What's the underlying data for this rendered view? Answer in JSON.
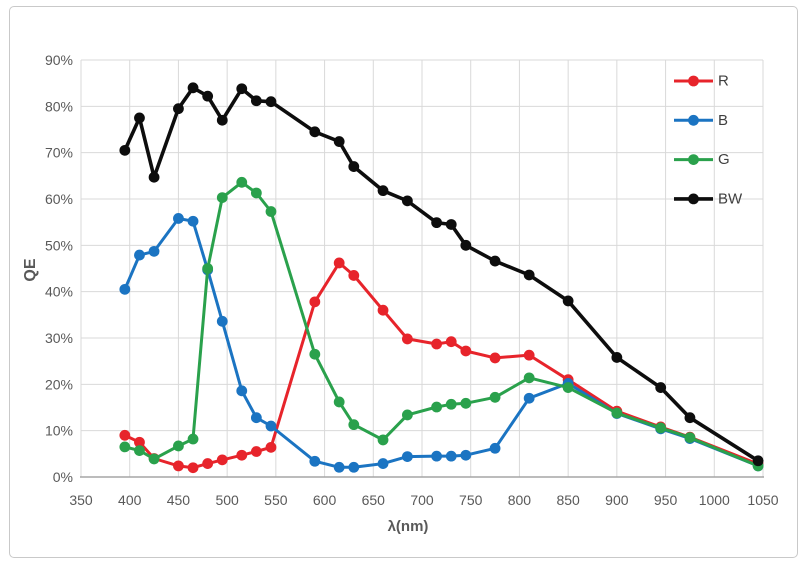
{
  "figure": {
    "border_color": "#c9c9c9",
    "background_color": "#ffffff",
    "gridline_color": "#d9d9d9",
    "axis_line_color": "#a6a6a6",
    "tick_label_color": "#595959",
    "legend_label_color": "#3f3f3f"
  },
  "chart_data": {
    "type": "line",
    "title": "",
    "xlabel": "λ(nm)",
    "ylabel": "QE",
    "xlim": [
      350,
      1050
    ],
    "ylim_percent": [
      0,
      90
    ],
    "x_ticks": [
      350,
      400,
      450,
      500,
      550,
      600,
      650,
      700,
      750,
      800,
      850,
      900,
      950,
      1000,
      1050
    ],
    "y_ticks_percent": [
      0,
      10,
      20,
      30,
      40,
      50,
      60,
      70,
      80,
      90
    ],
    "y_tick_suffix": "%",
    "grid": true,
    "legend_position": "top-right-inside",
    "x": [
      395,
      410,
      425,
      450,
      465,
      480,
      495,
      515,
      530,
      545,
      590,
      615,
      630,
      660,
      685,
      715,
      730,
      745,
      775,
      810,
      850,
      900,
      945,
      975,
      1045
    ],
    "series": [
      {
        "name": "R",
        "color": "#e7242b",
        "values": [
          9.0,
          7.5,
          4.0,
          2.4,
          2.0,
          2.9,
          3.7,
          4.7,
          5.5,
          6.4,
          37.8,
          46.2,
          43.5,
          36.0,
          29.8,
          28.7,
          29.2,
          27.2,
          25.7,
          26.3,
          21.0,
          14.2,
          10.8,
          8.6,
          2.8
        ]
      },
      {
        "name": "B",
        "color": "#1b74c2",
        "values": [
          40.5,
          47.9,
          48.7,
          55.8,
          55.2,
          44.7,
          33.6,
          18.6,
          12.8,
          11.0,
          3.4,
          2.1,
          2.1,
          2.9,
          4.4,
          4.5,
          4.5,
          4.7,
          6.2,
          17.0,
          20.2,
          13.7,
          10.4,
          8.3,
          2.4
        ]
      },
      {
        "name": "G",
        "color": "#2aa14c",
        "values": [
          6.5,
          5.7,
          3.9,
          6.7,
          8.2,
          45.0,
          60.3,
          63.6,
          61.3,
          57.3,
          26.5,
          16.2,
          11.3,
          8.0,
          13.4,
          15.1,
          15.7,
          15.9,
          17.2,
          21.4,
          19.3,
          13.8,
          10.6,
          8.5,
          2.4
        ]
      },
      {
        "name": "BW",
        "color": "#0d0d0d",
        "values": [
          70.5,
          77.5,
          64.7,
          79.5,
          84.0,
          82.2,
          77.0,
          83.8,
          81.2,
          81.0,
          74.5,
          72.4,
          67.0,
          61.8,
          59.6,
          54.9,
          54.5,
          50.0,
          46.6,
          43.6,
          38.0,
          25.8,
          19.3,
          12.8,
          3.5
        ]
      }
    ]
  }
}
